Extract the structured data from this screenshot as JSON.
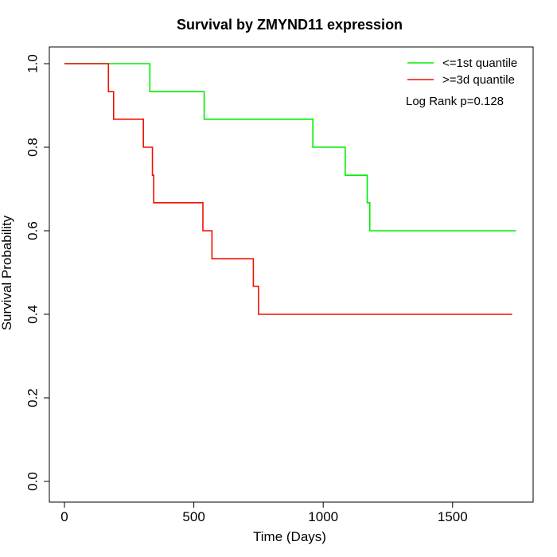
{
  "chart_data": {
    "type": "line",
    "subtype": "kaplan-meier step",
    "title": "Survival by ZMYND11 expression",
    "xlabel": "Time (Days)",
    "ylabel": "Survival Probability",
    "xlim": [
      0,
      1750
    ],
    "ylim": [
      0,
      1
    ],
    "x_ticks": [
      "0",
      "500",
      "1000",
      "1500"
    ],
    "y_ticks": [
      "0.0",
      "0.2",
      "0.4",
      "0.6",
      "0.8",
      "1.0"
    ],
    "grid": false,
    "legend_position": "top-right",
    "annotation": "Log Rank p=0.128",
    "series": [
      {
        "name": "<=1st quantile",
        "color": "#00ee00",
        "x": [
          0,
          330,
          540,
          960,
          1085,
          1170,
          1180,
          1745
        ],
        "y": [
          1.0,
          0.933,
          0.867,
          0.8,
          0.733,
          0.667,
          0.6,
          0.6
        ]
      },
      {
        "name": ">=3d quantile",
        "color": "#ee1100",
        "x": [
          0,
          170,
          190,
          305,
          340,
          345,
          535,
          570,
          730,
          750,
          1730
        ],
        "y": [
          1.0,
          0.933,
          0.867,
          0.8,
          0.733,
          0.667,
          0.6,
          0.533,
          0.467,
          0.4,
          0.4
        ]
      }
    ]
  }
}
